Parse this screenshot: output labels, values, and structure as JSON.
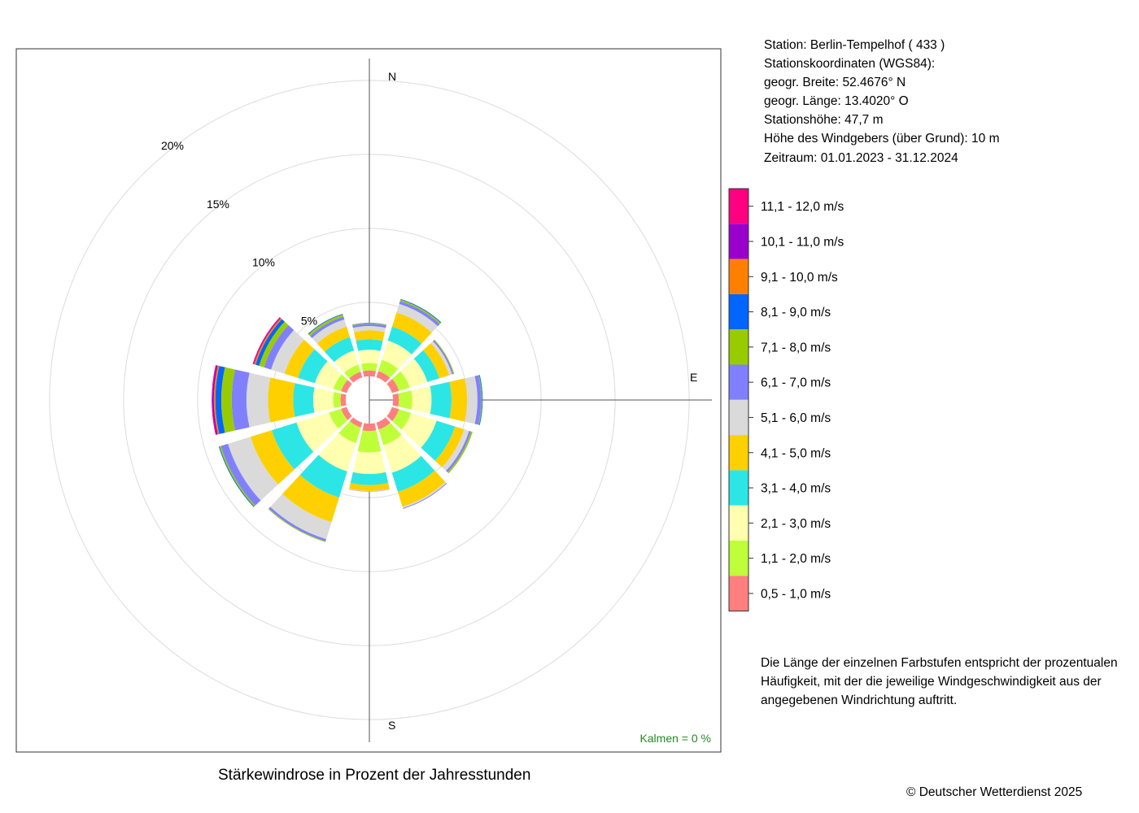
{
  "info": {
    "station": "Station:  Berlin-Tempelhof  ( 433 )",
    "coords_heading": "Stationskoordinaten (WGS84):",
    "latitude": "geogr. Breite: 52.4676° N",
    "longitude": "geogr. Länge: 13.4020° O",
    "elevation": "Stationshöhe: 47,7 m",
    "sensor_height": "Höhe des Windgebers (über Grund): 10 m",
    "period": "Zeitraum: 01.01.2023 - 31.12.2024"
  },
  "explanation": [
    "Die Länge der einzelnen Farbstufen entspricht der prozentualen",
    "Häufigkeit, mit der die jeweilige Windgeschwindigkeit aus der",
    "angegebenen Windrichtung auftritt."
  ],
  "title": "Stärkewindrose in Prozent der Jahresstunden",
  "copyright": "© Deutscher Wetterdienst  2025",
  "calm": "Kalmen  =  0 %",
  "chart_data": {
    "type": "windrose",
    "unit": "%",
    "ring_labels": [
      "5%",
      "10%",
      "15%",
      "20%"
    ],
    "ring_values": [
      5,
      10,
      15,
      20
    ],
    "r_offset": 1.6,
    "compass_labels": {
      "N": "N",
      "E": "E",
      "S": "S"
    },
    "directions_deg": [
      0,
      30,
      60,
      90,
      120,
      150,
      180,
      210,
      240,
      270,
      300,
      330
    ],
    "classes": [
      {
        "label": "0,5 - 1,0 m/s",
        "color": "#FF7F7F"
      },
      {
        "label": "1,1 - 2,0 m/s",
        "color": "#BFFF3A"
      },
      {
        "label": "2,1 - 3,0 m/s",
        "color": "#FFFFAF"
      },
      {
        "label": "3,1 - 4,0 m/s",
        "color": "#2CE6E6"
      },
      {
        "label": "4,1 - 5,0 m/s",
        "color": "#FFD000"
      },
      {
        "label": "5,1 - 6,0 m/s",
        "color": "#DADADA"
      },
      {
        "label": "6,1 - 7,0 m/s",
        "color": "#8080FF"
      },
      {
        "label": "7,1 - 8,0 m/s",
        "color": "#99CC00"
      },
      {
        "label": "8,1 - 9,0 m/s",
        "color": "#0066FF"
      },
      {
        "label": "9,1 - 10,0 m/s",
        "color": "#FF8000"
      },
      {
        "label": "10,1 - 11,0 m/s",
        "color": "#9900CC"
      },
      {
        "label": "11,1 - 12,0 m/s",
        "color": "#FF0080"
      }
    ],
    "series": [
      {
        "direction": 0,
        "values": [
          0.4,
          0.5,
          0.9,
          0.7,
          0.6,
          0.3,
          0.15,
          0.05,
          0.02,
          0,
          0,
          0
        ]
      },
      {
        "direction": 30,
        "values": [
          0.45,
          0.8,
          1.35,
          1.0,
          1.0,
          0.6,
          0.2,
          0.1,
          0.05,
          0,
          0,
          0
        ]
      },
      {
        "direction": 60,
        "values": [
          0.5,
          0.75,
          1.25,
          0.85,
          0.7,
          0.2,
          0.1,
          0.05,
          0,
          0,
          0,
          0
        ]
      },
      {
        "direction": 90,
        "values": [
          0.4,
          0.9,
          1.3,
          1.35,
          1.05,
          0.7,
          0.25,
          0.05,
          0.05,
          0,
          0,
          0
        ]
      },
      {
        "direction": 120,
        "values": [
          0.5,
          0.85,
          1.8,
          1.3,
          0.65,
          0.35,
          0.15,
          0.1,
          0,
          0,
          0,
          0
        ]
      },
      {
        "direction": 150,
        "values": [
          0.5,
          1.1,
          1.95,
          1.35,
          1.05,
          0.1,
          0.05,
          0,
          0,
          0,
          0,
          0
        ]
      },
      {
        "direction": 180,
        "values": [
          0.5,
          1.45,
          1.45,
          0.75,
          0.4,
          0.03,
          0.02,
          0,
          0,
          0,
          0,
          0
        ]
      },
      {
        "direction": 210,
        "values": [
          0.35,
          1.1,
          2.0,
          1.85,
          1.75,
          1.2,
          0.15,
          0.05,
          0,
          0,
          0,
          0
        ]
      },
      {
        "direction": 240,
        "values": [
          0.4,
          0.85,
          2.3,
          1.75,
          1.5,
          1.6,
          0.5,
          0.1,
          0.05,
          0,
          0,
          0
        ]
      },
      {
        "direction": 270,
        "values": [
          0.35,
          0.5,
          1.35,
          1.35,
          1.7,
          1.45,
          1.0,
          0.7,
          0.4,
          0.1,
          0.1,
          0.05
        ]
      },
      {
        "direction": 300,
        "values": [
          0.4,
          0.55,
          1.3,
          1.2,
          0.95,
          0.95,
          0.5,
          0.35,
          0.25,
          0.1,
          0.05,
          0.05
        ]
      },
      {
        "direction": 330,
        "values": [
          0.4,
          0.5,
          1.0,
          0.95,
          0.75,
          0.5,
          0.2,
          0.15,
          0.05,
          0,
          0,
          0
        ]
      }
    ]
  }
}
